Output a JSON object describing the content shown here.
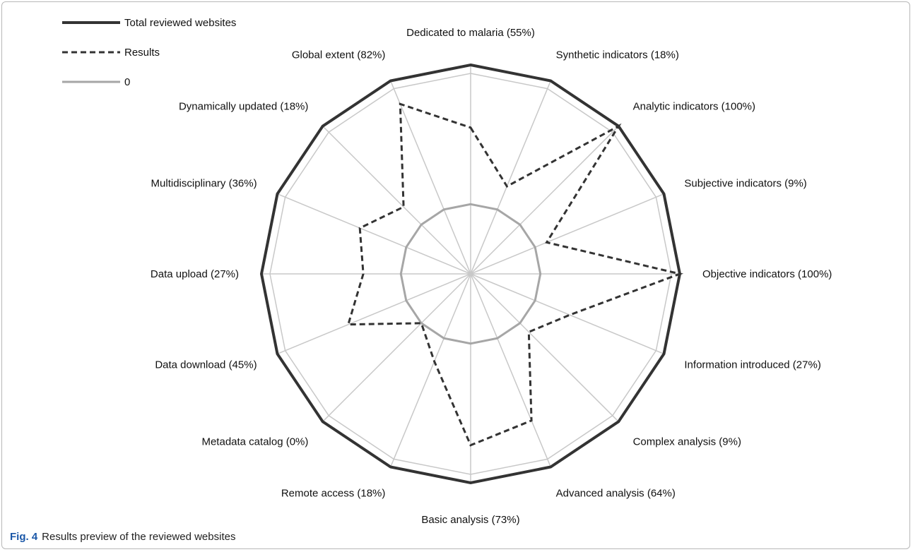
{
  "caption": {
    "fig_label": "Fig. 4",
    "text": "Results preview of the reviewed websites"
  },
  "chart_data": {
    "type": "radar",
    "title": "",
    "legend_placement": "top-left",
    "categories": [
      "Dedicated to malaria (55%)",
      "Synthetic  indicators (18%)",
      "Analytic  indicators  (100%)",
      "Subjective  indicators  (9%)",
      "Objective indicators  (100%)",
      "Information introduced (27%)",
      "Complex analysis  (9%)",
      "Advanced analysis  (64%)",
      "Basic analysis  (73%)",
      "Remote access  (18%)",
      "Metadata catalog  (0%)",
      "Data download  (45%)",
      "Data upload  (27%)",
      "Multidisciplinary  (36%)",
      "Dynamically updated  (18%)",
      "Global extent  (82%)"
    ],
    "series": [
      {
        "name": "Total reviewed websites",
        "values": [
          100,
          100,
          100,
          100,
          100,
          100,
          100,
          100,
          100,
          100,
          100,
          100,
          100,
          100,
          100,
          100
        ],
        "color": "#333333",
        "style": "solid-thick"
      },
      {
        "name": "Results",
        "values": [
          55,
          18,
          100,
          9,
          100,
          27,
          9,
          64,
          73,
          18,
          0,
          45,
          27,
          36,
          18,
          82
        ],
        "color": "#333333",
        "style": "dashed"
      },
      {
        "name": "0",
        "values": [
          0,
          0,
          0,
          0,
          0,
          0,
          0,
          0,
          0,
          0,
          0,
          0,
          0,
          0,
          0,
          0
        ],
        "color": "#a6a6a6",
        "style": "solid"
      }
    ],
    "scale": {
      "min": -50,
      "max": 100
    },
    "colors": {
      "total": "#333333",
      "results": "#333333",
      "zero": "#a6a6a6",
      "grid": "#c8c8c8"
    }
  }
}
